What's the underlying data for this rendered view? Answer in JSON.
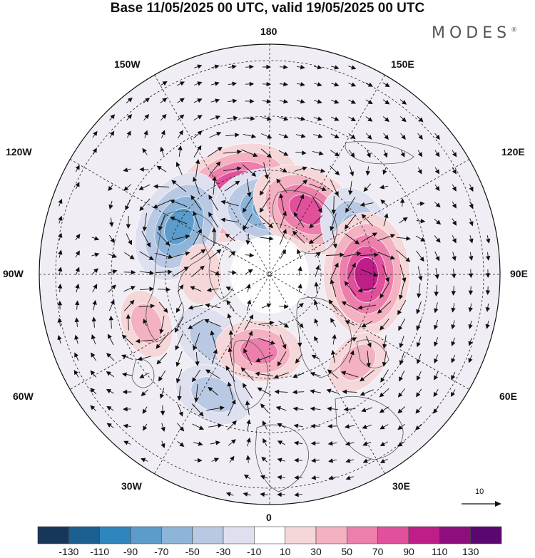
{
  "title": "Base 11/05/2025 00 UTC, valid 19/05/2025 00 UTC",
  "brand": "MODES",
  "brand_mark": "®",
  "longitude_labels": {
    "n180": "180",
    "w150": "150W",
    "e150": "150E",
    "w120": "120W",
    "e120": "120E",
    "w90": "90W",
    "e90": "90E",
    "w60": "60W",
    "e60": "60E",
    "w30": "30W",
    "e30": "30E",
    "s0": "0"
  },
  "reference_vector": "10",
  "colorbar": {
    "labels": [
      "-130",
      "-110",
      "-90",
      "-70",
      "-50",
      "-30",
      "-10",
      "10",
      "30",
      "50",
      "70",
      "90",
      "110",
      "130"
    ],
    "colors": [
      "#17375a",
      "#1c5f91",
      "#2f86bd",
      "#5b9ccb",
      "#8eb4d9",
      "#b9c9e3",
      "#dfe0ef",
      "#ffffff",
      "#f6d7d9",
      "#f3b1c1",
      "#ec7fab",
      "#e0509b",
      "#bd1e88",
      "#8f0e7e",
      "#5a0870"
    ]
  },
  "map": {
    "anomaly_centers": [
      {
        "lon_lat": [
          -157,
          58
        ],
        "value": 100
      },
      {
        "lon_lat": [
          -118,
          53
        ],
        "value": -80
      },
      {
        "lon_lat": [
          178,
          66
        ],
        "value": -80
      },
      {
        "lon_lat": [
          150,
          63
        ],
        "value": 80
      },
      {
        "lon_lat": [
          115,
          55
        ],
        "value": -60
      },
      {
        "lon_lat": [
          90,
          55
        ],
        "value": 90
      },
      {
        "lon_lat": [
          -42,
          58
        ],
        "value": -40
      },
      {
        "lon_lat": [
          -8,
          62
        ],
        "value": 50
      },
      {
        "lon_lat": [
          -68,
          42
        ],
        "value": 30
      },
      {
        "lon_lat": [
          -25,
          42
        ],
        "value": -40
      },
      {
        "lon_lat": [
          45,
          45
        ],
        "value": 30
      },
      {
        "lon_lat": [
          -90,
          65
        ],
        "value": 20
      }
    ]
  }
}
